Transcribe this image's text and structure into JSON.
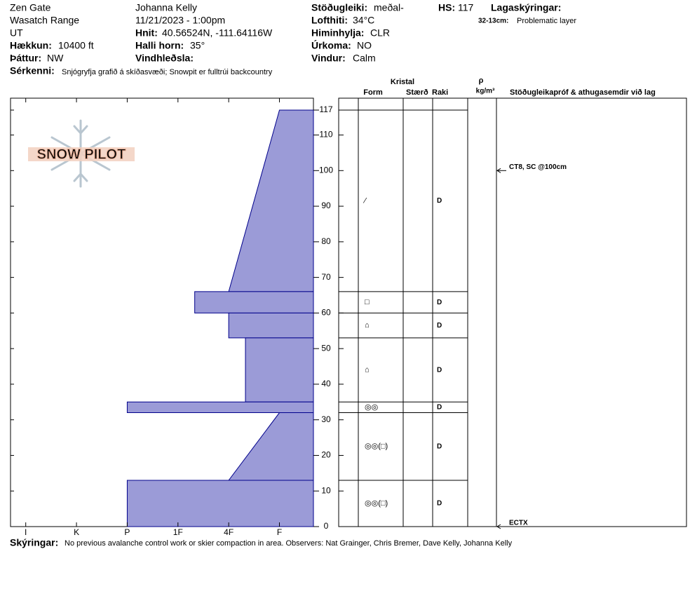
{
  "header": {
    "location": "Zen Gate",
    "range": "Wasatch Range",
    "state": "UT",
    "observer": "Johanna Kelly",
    "datetime": "11/21/2023 - 1:00pm",
    "elevation": {
      "label": "Hækkun:",
      "value": "10400 ft"
    },
    "aspect": {
      "label": "Þáttur:",
      "value": "NW"
    },
    "coords": {
      "label": "Hnit:",
      "value": "40.56524N, -111.64116W"
    },
    "slope": {
      "label": "Halli horn:",
      "value": "35°"
    },
    "wind_loading": {
      "label": "Vindhleðsla:"
    },
    "stability": {
      "label": "Stöðugleiki:",
      "value": "meðal-"
    },
    "air_temp": {
      "label": "Lofthiti:",
      "value": "34°C"
    },
    "sky": {
      "label": "Himinhylja:",
      "value": "CLR"
    },
    "precip": {
      "label": "Úrkoma:",
      "value": "NO"
    },
    "wind": {
      "label": "Vindur:",
      "value": "Calm"
    },
    "hs": {
      "label": "HS:",
      "value": "117"
    },
    "layer_notes": {
      "label": "Lagaskýringar:",
      "items": [
        {
          "range": "32-13cm:",
          "text": "Problematic layer"
        }
      ]
    },
    "features": {
      "label": "Sérkenni:",
      "value": "Snjógryfja grafið á skíðasvæði; Snowpit er fulltrúi backcountry"
    }
  },
  "logo_text": "SNOW PILOT",
  "footer": {
    "label": "Skýringar:",
    "value": "No previous avalanche control work or skier compaction in area. Observers: Nat Grainger, Chris Bremer, Dave Kelly, Johanna Kelly"
  },
  "table_headers": {
    "crystal": "Kristal",
    "form": "Form",
    "size": "Stærð",
    "moisture": "Raki",
    "rho": "ρ",
    "density_unit": "kg/m³",
    "comments": "Stöðugleikapróf & athugasemdir við lag"
  },
  "chart_data": {
    "type": "snow-profile",
    "fill": "#9b9bd7",
    "stroke": "#00008b",
    "ylim": [
      0,
      117
    ],
    "yticks": [
      0,
      10,
      20,
      30,
      40,
      50,
      60,
      70,
      80,
      90,
      100,
      110,
      117
    ],
    "xlim": [
      6.3,
      0.33
    ],
    "xticks": [
      {
        "value": 6,
        "label": "I"
      },
      {
        "value": 5,
        "label": "K"
      },
      {
        "value": 4,
        "label": "P"
      },
      {
        "value": 3,
        "label": "1F"
      },
      {
        "value": 2,
        "label": "4F"
      },
      {
        "value": 1,
        "label": "F"
      }
    ],
    "layers": [
      {
        "top": 117,
        "bottom": 66,
        "hardness_top": 1,
        "hardness_bottom": 2,
        "grain": "⁄",
        "moisture": "D"
      },
      {
        "top": 66,
        "bottom": 60,
        "hardness_top": 2.67,
        "hardness_bottom": 2.67,
        "grain": "□",
        "moisture": "D"
      },
      {
        "top": 60,
        "bottom": 53,
        "hardness_top": 2,
        "hardness_bottom": 2,
        "grain": "⌂",
        "moisture": "D"
      },
      {
        "top": 53,
        "bottom": 35,
        "hardness_top": 1.67,
        "hardness_bottom": 1.67,
        "grain": "⌂",
        "moisture": "D"
      },
      {
        "top": 35,
        "bottom": 32,
        "hardness_top": 4,
        "hardness_bottom": 4,
        "grain": "◎◎",
        "moisture": "D"
      },
      {
        "top": 32,
        "bottom": 13,
        "hardness_top": 1,
        "hardness_bottom": 2,
        "grain": "◎◎(□)",
        "moisture": "D"
      },
      {
        "top": 13,
        "bottom": 0,
        "hardness_top": 4,
        "hardness_bottom": 4,
        "grain": "◎◎(□)",
        "moisture": "D"
      }
    ],
    "comments": [
      {
        "height": 100,
        "text": "CT8, SC @100cm"
      },
      {
        "height": 0,
        "text": "ECTX"
      }
    ]
  }
}
